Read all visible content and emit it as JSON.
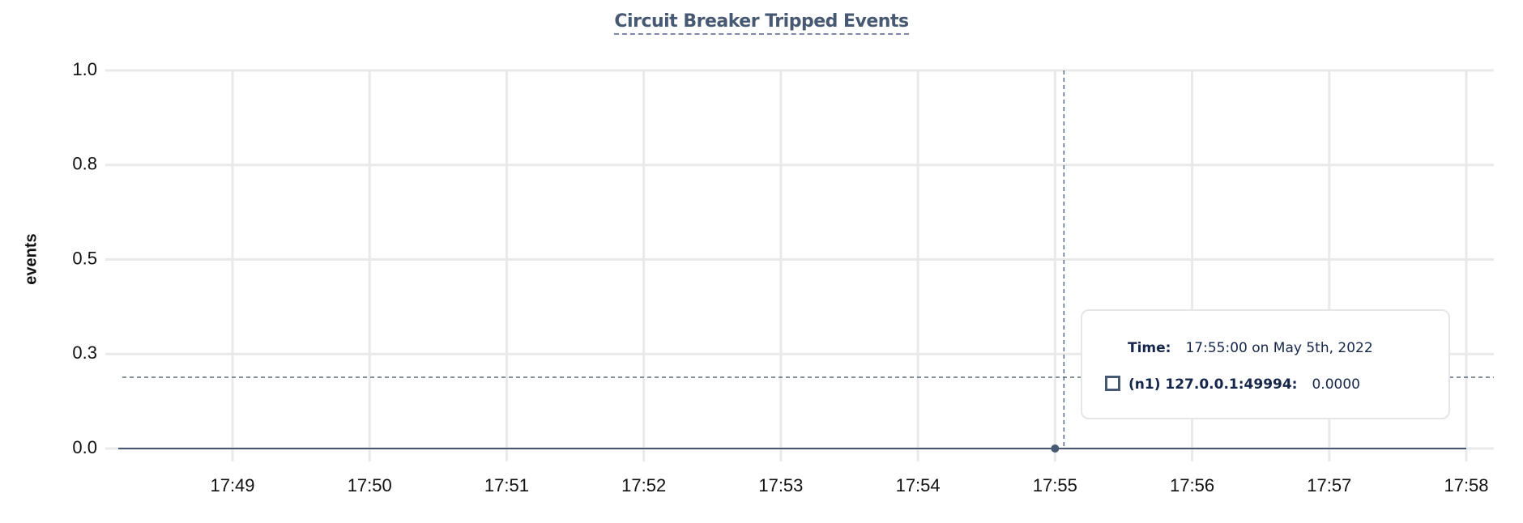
{
  "chart_data": {
    "type": "line",
    "title": "Circuit Breaker Tripped Events",
    "ylabel": "events",
    "xlabel": "",
    "ylim": [
      0,
      1.0
    ],
    "y_ticks": [
      0,
      0.25,
      0.5,
      0.75,
      1.0
    ],
    "y_tick_labels": [
      "0.0",
      "0.3",
      "0.5",
      "0.8",
      "1.0"
    ],
    "x_ticks": [
      "17:49",
      "17:50",
      "17:51",
      "17:52",
      "17:53",
      "17:54",
      "17:55",
      "17:56",
      "17:57",
      "17:58"
    ],
    "xlim": [
      "17:48:00",
      "17:58:15"
    ],
    "grid": true,
    "series": [
      {
        "name": "(n1) 127.0.0.1:49994",
        "color": "#475872",
        "x": [
          "17:48:10",
          "17:58:00"
        ],
        "values": [
          0,
          0
        ]
      }
    ],
    "hover": {
      "x": "17:55:00",
      "y": 0.0
    }
  },
  "tooltip": {
    "time_label": "Time:",
    "time_value": "17:55:00 on May 5th, 2022",
    "series_label": "(n1) 127.0.0.1:49994:",
    "series_value": "0.0000"
  }
}
